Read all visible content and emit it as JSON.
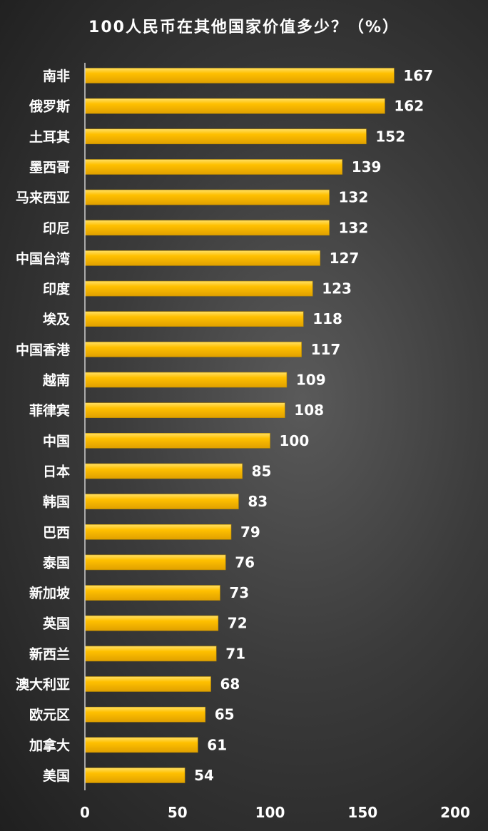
{
  "chart_data": {
    "type": "bar",
    "orientation": "horizontal",
    "title": "100人民币在其他国家价值多少？（%）",
    "xlabel": "",
    "ylabel": "",
    "xlim": [
      0,
      200
    ],
    "x_ticks": [
      "0",
      "50",
      "100",
      "150",
      "200"
    ],
    "grid": false,
    "legend": "none",
    "bar_color": "#ffc000",
    "categories": [
      "南非",
      "俄罗斯",
      "土耳其",
      "墨西哥",
      "马来西亚",
      "印尼",
      "中国台湾",
      "印度",
      "埃及",
      "中国香港",
      "越南",
      "菲律宾",
      "中国",
      "日本",
      "韩国",
      "巴西",
      "泰国",
      "新加坡",
      "英国",
      "新西兰",
      "澳大利亚",
      "欧元区",
      "加拿大",
      "美国"
    ],
    "values": [
      167,
      162,
      152,
      139,
      132,
      132,
      127,
      123,
      118,
      117,
      109,
      108,
      100,
      85,
      83,
      79,
      76,
      73,
      72,
      71,
      68,
      65,
      61,
      54
    ]
  }
}
